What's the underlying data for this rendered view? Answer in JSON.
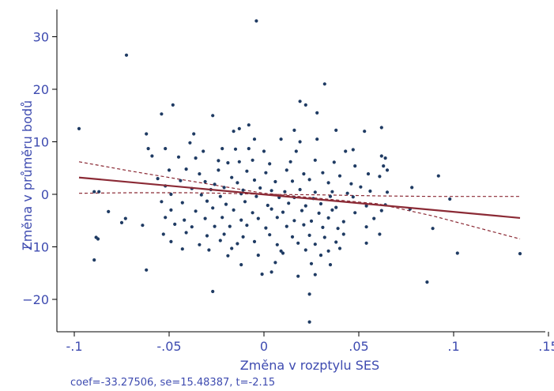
{
  "chart_data": {
    "type": "scatter",
    "xlabel": "Změna v rozptylu SES",
    "ylabel": "Změna v průměru bodů",
    "footnote": "coef=-33.27506, se=15.48387, t=-2.15",
    "xlim": [
      -0.1,
      0.15
    ],
    "ylim": [
      -26,
      35
    ],
    "x_ticks": [
      -0.1,
      -0.05,
      0,
      0.05,
      0.1,
      0.15
    ],
    "x_tick_labels": [
      "-.1",
      "-.05",
      "0",
      ".05",
      ".1",
      ".15"
    ],
    "y_ticks": [
      -20,
      -10,
      0,
      10,
      20,
      30
    ],
    "y_tick_labels": [
      "−20",
      "−10",
      "0",
      "10",
      "20",
      "30"
    ],
    "grid": false,
    "colors": {
      "points": "#1f3b63",
      "fit": "#8b2a35",
      "text": "#3e4bb0",
      "axis": "#000000"
    },
    "fit_line": {
      "x": [
        -0.0975,
        0.135
      ],
      "y": [
        3.2,
        -4.5
      ]
    },
    "ci_upper": {
      "x": [
        -0.0975,
        -0.07,
        -0.04,
        -0.02,
        0,
        0.03,
        0.06,
        0.09,
        0.135
      ],
      "y": [
        6.2,
        4.4,
        2.6,
        1.4,
        0.2,
        -0.8,
        -1.8,
        -4.2,
        -8.5
      ]
    },
    "ci_lower": {
      "x": [
        -0.0975,
        -0.07,
        -0.04,
        -0.02,
        0,
        0.03,
        0.06,
        0.09,
        0.135
      ],
      "y": [
        0.2,
        0.3,
        0.3,
        0.2,
        0,
        -0.1,
        -0.3,
        -0.4,
        -0.4
      ]
    },
    "points": [
      [
        -0.0975,
        12.5
      ],
      [
        -0.0725,
        26.5
      ],
      [
        -0.004,
        33
      ],
      [
        0.032,
        21
      ],
      [
        0.019,
        17.7
      ],
      [
        0.022,
        17
      ],
      [
        -0.048,
        17
      ],
      [
        -0.054,
        15.3
      ],
      [
        -0.027,
        15
      ],
      [
        0.028,
        15.5
      ],
      [
        -0.008,
        13.2
      ],
      [
        -0.013,
        12.5
      ],
      [
        0.053,
        12
      ],
      [
        0.062,
        12.7
      ],
      [
        -0.062,
        11.5
      ],
      [
        -0.037,
        11.5
      ],
      [
        -0.016,
        12
      ],
      [
        0.016,
        12.2
      ],
      [
        0.038,
        12.2
      ],
      [
        -0.039,
        9.8
      ],
      [
        -0.005,
        10.5
      ],
      [
        0.009,
        10.5
      ],
      [
        0.019,
        10
      ],
      [
        0.028,
        10.5
      ],
      [
        -0.061,
        8.7
      ],
      [
        -0.052,
        8.7
      ],
      [
        -0.032,
        8.2
      ],
      [
        -0.022,
        8.7
      ],
      [
        -0.015,
        8.6
      ],
      [
        -0.008,
        8.7
      ],
      [
        0,
        8.2
      ],
      [
        0.017,
        8.2
      ],
      [
        0.043,
        8.2
      ],
      [
        0.047,
        8.5
      ],
      [
        0.062,
        7.3
      ],
      [
        0.064,
        6.9
      ],
      [
        -0.059,
        7.3
      ],
      [
        -0.045,
        7.1
      ],
      [
        -0.036,
        6.9
      ],
      [
        -0.024,
        6.4
      ],
      [
        -0.019,
        6.0
      ],
      [
        -0.013,
        6.2
      ],
      [
        -0.006,
        6.5
      ],
      [
        0.003,
        5.8
      ],
      [
        0.014,
        6.2
      ],
      [
        0.027,
        6.5
      ],
      [
        0.037,
        6.1
      ],
      [
        0.048,
        5.4
      ],
      [
        0.063,
        5.4
      ],
      [
        0.065,
        4.6
      ],
      [
        -0.05,
        4.6
      ],
      [
        -0.041,
        4.8
      ],
      [
        -0.034,
        3.9
      ],
      [
        -0.024,
        4.6
      ],
      [
        -0.017,
        3.2
      ],
      [
        -0.009,
        4.4
      ],
      [
        0.001,
        4.1
      ],
      [
        0.012,
        4.6
      ],
      [
        0.021,
        3.9
      ],
      [
        0.031,
        4.1
      ],
      [
        0.04,
        3.5
      ],
      [
        0.055,
        3.9
      ],
      [
        0.061,
        3.4
      ],
      [
        0.092,
        3.5
      ],
      [
        -0.056,
        3.0
      ],
      [
        -0.044,
        2.6
      ],
      [
        -0.031,
        2.4
      ],
      [
        -0.026,
        1.9
      ],
      [
        -0.014,
        2.2
      ],
      [
        -0.005,
        2.7
      ],
      [
        0.006,
        2.4
      ],
      [
        0.015,
        2.5
      ],
      [
        0.024,
        2.8
      ],
      [
        0.034,
        2.2
      ],
      [
        0.046,
        2.0
      ],
      [
        0.051,
        1.4
      ],
      [
        -0.052,
        1.6
      ],
      [
        -0.038,
        1.1
      ],
      [
        -0.028,
        0.9
      ],
      [
        -0.021,
        1.3
      ],
      [
        -0.011,
        0.8
      ],
      [
        -0.002,
        1.2
      ],
      [
        0.004,
        0.7
      ],
      [
        0.011,
        0.5
      ],
      [
        0.019,
        0.9
      ],
      [
        0.027,
        0.4
      ],
      [
        0.036,
        0.5
      ],
      [
        0.044,
        0.2
      ],
      [
        0.056,
        0.6
      ],
      [
        0.065,
        0.4
      ],
      [
        0.078,
        1.3
      ],
      [
        -0.0895,
        0.5
      ],
      [
        -0.087,
        0.5
      ],
      [
        -0.049,
        0.0
      ],
      [
        -0.033,
        -0.1
      ],
      [
        -0.023,
        -0.4
      ],
      [
        -0.012,
        0.1
      ],
      [
        -0.004,
        -0.4
      ],
      [
        0.008,
        -0.6
      ],
      [
        0.016,
        -0.6
      ],
      [
        0.026,
        -0.8
      ],
      [
        0.035,
        -0.4
      ],
      [
        0.047,
        -0.5
      ],
      [
        0.098,
        -0.9
      ],
      [
        -0.054,
        -1.4
      ],
      [
        -0.043,
        -1.6
      ],
      [
        -0.03,
        -1.3
      ],
      [
        -0.02,
        -1.9
      ],
      [
        -0.01,
        -1.4
      ],
      [
        0.002,
        -2.1
      ],
      [
        0.013,
        -1.7
      ],
      [
        0.022,
        -2.2
      ],
      [
        0.03,
        -1.8
      ],
      [
        0.038,
        -2.5
      ],
      [
        0.054,
        -2.2
      ],
      [
        0.064,
        -2.0
      ],
      [
        -0.082,
        -3.3
      ],
      [
        -0.049,
        -3.0
      ],
      [
        -0.036,
        -3.2
      ],
      [
        -0.027,
        -2.6
      ],
      [
        -0.016,
        -3.0
      ],
      [
        -0.006,
        -3.5
      ],
      [
        0.004,
        -2.8
      ],
      [
        0.01,
        -3.4
      ],
      [
        0.02,
        -3.1
      ],
      [
        0.029,
        -3.6
      ],
      [
        0.036,
        -3.0
      ],
      [
        0.048,
        -3.5
      ],
      [
        0.062,
        -3.1
      ],
      [
        0.077,
        -2.8
      ],
      [
        -0.073,
        -4.6
      ],
      [
        -0.052,
        -4.4
      ],
      [
        -0.042,
        -4.9
      ],
      [
        -0.031,
        -4.6
      ],
      [
        -0.022,
        -4.4
      ],
      [
        -0.012,
        -4.9
      ],
      [
        -0.003,
        -4.6
      ],
      [
        0.007,
        -4.4
      ],
      [
        0.016,
        -5.0
      ],
      [
        0.025,
        -5.1
      ],
      [
        0.034,
        -4.5
      ],
      [
        0.042,
        -5.2
      ],
      [
        0.058,
        -4.6
      ],
      [
        -0.075,
        -5.4
      ],
      [
        -0.064,
        -5.9
      ],
      [
        -0.047,
        -5.7
      ],
      [
        -0.038,
        -6.2
      ],
      [
        -0.026,
        -6.1
      ],
      [
        -0.018,
        -6.1
      ],
      [
        -0.009,
        -5.9
      ],
      [
        0.001,
        -6.4
      ],
      [
        0.012,
        -6.1
      ],
      [
        0.021,
        -5.8
      ],
      [
        0.031,
        -6.3
      ],
      [
        0.039,
        -6.5
      ],
      [
        0.054,
        -6.2
      ],
      [
        0.089,
        -6.5
      ],
      [
        -0.053,
        -7.6
      ],
      [
        -0.041,
        -7.3
      ],
      [
        -0.03,
        -7.9
      ],
      [
        -0.021,
        -7.6
      ],
      [
        -0.011,
        -8.1
      ],
      [
        0.003,
        -7.7
      ],
      [
        0.015,
        -8.1
      ],
      [
        0.024,
        -7.8
      ],
      [
        0.032,
        -8.2
      ],
      [
        0.042,
        -7.6
      ],
      [
        0.061,
        -7.6
      ],
      [
        -0.0875,
        -8.5
      ],
      [
        -0.0885,
        -8.2
      ],
      [
        -0.049,
        -9.0
      ],
      [
        -0.034,
        -9.6
      ],
      [
        -0.023,
        -8.8
      ],
      [
        -0.014,
        -9.4
      ],
      [
        -0.005,
        -9.0
      ],
      [
        0.007,
        -9.6
      ],
      [
        0.018,
        -9.3
      ],
      [
        0.027,
        -9.5
      ],
      [
        0.038,
        -9.1
      ],
      [
        0.054,
        -9.3
      ],
      [
        -0.043,
        -10.4
      ],
      [
        -0.029,
        -10.6
      ],
      [
        -0.017,
        -10.3
      ],
      [
        0.009,
        -10.8
      ],
      [
        0.022,
        -10.6
      ],
      [
        0.034,
        -10.8
      ],
      [
        0.04,
        -10.3
      ],
      [
        -0.019,
        -11.7
      ],
      [
        -0.003,
        -11.6
      ],
      [
        0.01,
        -11.2
      ],
      [
        0.03,
        -11.6
      ],
      [
        0.102,
        -11.2
      ],
      [
        0.135,
        -11.3
      ],
      [
        -0.0895,
        -12.5
      ],
      [
        -0.012,
        -13.4
      ],
      [
        0.006,
        -13.0
      ],
      [
        0.025,
        -13.2
      ],
      [
        0.035,
        -13.4
      ],
      [
        -0.062,
        -14.4
      ],
      [
        0.004,
        -14.8
      ],
      [
        -0.001,
        -15.2
      ],
      [
        0.018,
        -15.6
      ],
      [
        0.027,
        -15.3
      ],
      [
        0.086,
        -16.7
      ],
      [
        0.024,
        -19
      ],
      [
        -0.027,
        -18.5
      ],
      [
        0.024,
        -24.3
      ]
    ]
  }
}
